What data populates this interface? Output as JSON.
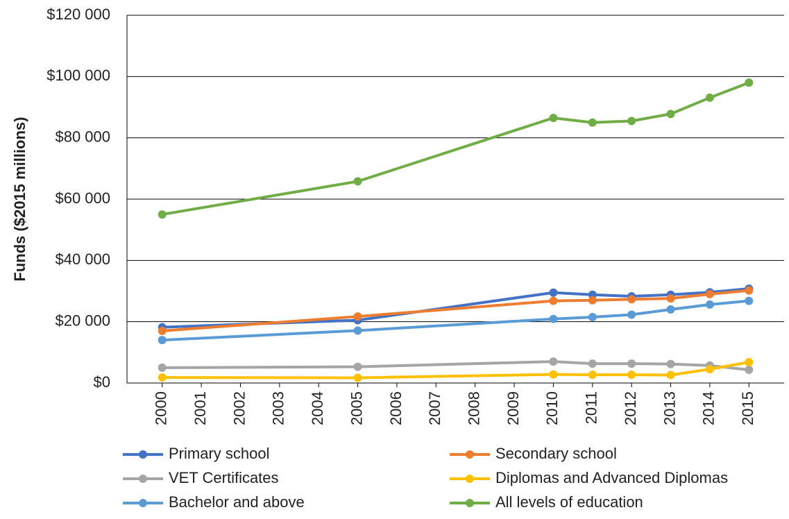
{
  "chart_data": {
    "type": "line",
    "y_label": "Funds ($2015 millions)",
    "x": [
      2000,
      2005,
      2010,
      2011,
      2012,
      2013,
      2014,
      2015
    ],
    "xlim": [
      1999.1,
      2015.9
    ],
    "xticks": [
      2000,
      2001,
      2002,
      2003,
      2004,
      2005,
      2006,
      2007,
      2008,
      2009,
      2010,
      2011,
      2012,
      2013,
      2014,
      2015
    ],
    "ylim": [
      0,
      120000
    ],
    "yticks": [
      {
        "value": 0,
        "label": "$0"
      },
      {
        "value": 20000,
        "label": "$20 000"
      },
      {
        "value": 40000,
        "label": "$40 000"
      },
      {
        "value": 60000,
        "label": "$60 000"
      },
      {
        "value": 80000,
        "label": "$80 000"
      },
      {
        "value": 100000,
        "label": "$100 000"
      },
      {
        "value": 120000,
        "label": "$120 000"
      }
    ],
    "grid": true,
    "legend": "bottom",
    "series": [
      {
        "name": "Primary school",
        "color": "#4472c4",
        "values": [
          18200,
          20500,
          29500,
          28800,
          28300,
          28800,
          29600,
          30800
        ]
      },
      {
        "name": "Secondary school",
        "color": "#ed7d31",
        "values": [
          17000,
          21700,
          26800,
          27000,
          27300,
          27600,
          29000,
          30200
        ]
      },
      {
        "name": "VET Certificates",
        "color": "#a5a5a5",
        "values": [
          5000,
          5300,
          7000,
          6300,
          6300,
          6200,
          5700,
          4300
        ]
      },
      {
        "name": "Diplomas and Advanced Diplomas",
        "color": "#ffc000",
        "values": [
          1800,
          1700,
          2800,
          2700,
          2700,
          2600,
          4500,
          6800
        ]
      },
      {
        "name": "Bachelor and above",
        "color": "#5b9bd5",
        "values": [
          14000,
          17100,
          20900,
          21500,
          22300,
          24000,
          25600,
          26800
        ]
      },
      {
        "name": "All levels of education",
        "color": "#70ad47",
        "values": [
          55000,
          65800,
          86500,
          85000,
          85500,
          87800,
          93100,
          98000
        ]
      }
    ]
  }
}
